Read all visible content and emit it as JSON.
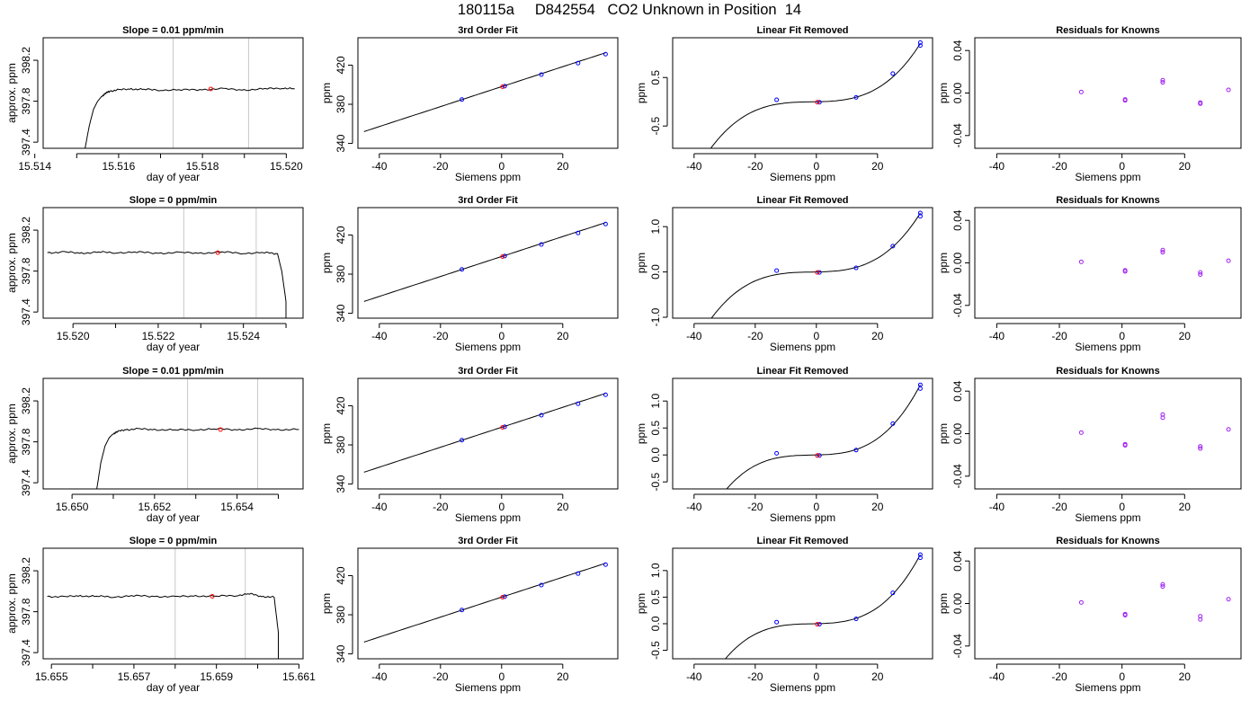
{
  "page": {
    "title": "180115a     D842554   CO2 Unknown in Position  14"
  },
  "styles": {
    "trace_color": "#000000",
    "vline_color": "#c8c8c8",
    "unknown_point_color": "#ff0000",
    "known_point_color": "#0000ff",
    "residual_point_color": "#a020f0",
    "frame_color": "#000000"
  },
  "chart_data": [
    {
      "row": 1,
      "type": "line",
      "title": "Slope =  0.01  ppm/min",
      "xlabel": "day of year",
      "ylabel": "approx. ppm",
      "xlim": [
        15.5142,
        15.5204
      ],
      "ylim": [
        397.34,
        398.42
      ],
      "xticks": [
        15.514,
        15.516,
        15.518,
        15.52
      ],
      "xtick_labels": [
        "15.514",
        "15.516",
        "15.518",
        "15.520"
      ],
      "xticks_minor": [
        15.515,
        15.517,
        15.519
      ],
      "yticks": [
        397.4,
        397.8,
        398.2
      ],
      "ytick_labels": [
        "397.4",
        "397.8",
        "398.2"
      ],
      "vlines": [
        15.5173,
        15.5191
      ],
      "trace": {
        "x": [
          15.5152,
          15.5153,
          15.5154,
          15.5155,
          15.5156,
          15.5157,
          15.5158,
          15.516,
          15.5163,
          15.5166,
          15.517,
          15.5175,
          15.518,
          15.5185,
          15.519,
          15.5195,
          15.5199,
          15.5202
        ],
        "y": [
          397.34,
          397.56,
          397.72,
          397.8,
          397.85,
          397.88,
          397.9,
          397.91,
          397.92,
          397.915,
          397.91,
          397.91,
          397.915,
          397.92,
          397.91,
          397.92,
          397.93,
          397.92
        ]
      },
      "marker": {
        "x": 15.5182,
        "y": 397.92
      }
    },
    {
      "row": 1,
      "type": "scatter",
      "title": "3rd Order Fit",
      "xlabel": "Siemens ppm",
      "ylabel": "ppm",
      "xlim": [
        -47,
        38
      ],
      "ylim": [
        335,
        448
      ],
      "xticks": [
        -40,
        -20,
        0,
        20
      ],
      "xtick_labels": [
        "-40",
        "-20",
        "0",
        "20"
      ],
      "yticks": [
        340,
        380,
        420
      ],
      "ytick_labels": [
        "340",
        "380",
        "420"
      ],
      "curve": {
        "kind": "fit",
        "x_from": -45,
        "x_to": 34
      },
      "known_points": {
        "x": [
          -13,
          1,
          13,
          25,
          34
        ],
        "y": [
          384.8,
          398.5,
          410.3,
          422.1,
          431.2
        ]
      },
      "unknown_points": {
        "x": [
          0.3
        ],
        "y": [
          397.9
        ]
      }
    },
    {
      "row": 1,
      "type": "scatter",
      "title": "Linear Fit Removed",
      "xlabel": "Siemens ppm",
      "ylabel": "ppm",
      "xlim": [
        -47,
        38
      ],
      "ylim": [
        -0.96,
        1.32
      ],
      "xticks": [
        -40,
        -20,
        0,
        20
      ],
      "xtick_labels": [
        "-40",
        "-20",
        "0",
        "20"
      ],
      "yticks": [
        -0.5,
        0.5
      ],
      "ytick_labels": [
        "-0.5",
        "0.5"
      ],
      "curve": {
        "kind": "cubic",
        "x_from": -45,
        "x_to": 34,
        "y_at_34": 1.2
      },
      "known_points": {
        "x": [
          -13,
          1,
          13,
          25,
          34,
          34
        ],
        "y": [
          0.04,
          -0.01,
          0.09,
          0.58,
          1.16,
          1.22
        ]
      },
      "unknown_points": {
        "x": [
          0.3
        ],
        "y": [
          -0.01
        ]
      }
    },
    {
      "row": 1,
      "type": "scatter",
      "title": "Residuals for Knowns",
      "xlabel": "Siemens ppm",
      "ylabel": "ppm",
      "xlim": [
        -47,
        38
      ],
      "ylim": [
        -0.052,
        0.052
      ],
      "xticks": [
        -40,
        -20,
        0,
        20
      ],
      "xtick_labels": [
        "-40",
        "-20",
        "0",
        "20"
      ],
      "yticks": [
        -0.04,
        0.0,
        0.04
      ],
      "ytick_labels": [
        "-0.04",
        "0.00",
        "0.04"
      ],
      "residual_points": {
        "x": [
          -13,
          1,
          1,
          13,
          13,
          25,
          25,
          34
        ],
        "y": [
          0.001,
          -0.006,
          -0.007,
          0.01,
          0.012,
          -0.009,
          -0.01,
          0.003
        ]
      }
    },
    {
      "row": 2,
      "type": "line",
      "title": "Slope =  0  ppm/min",
      "xlabel": "day of year",
      "ylabel": "approx. ppm",
      "xlim": [
        15.5193,
        15.5254
      ],
      "ylim": [
        397.34,
        398.42
      ],
      "xticks": [
        15.52,
        15.522,
        15.524
      ],
      "xtick_labels": [
        "15.520",
        "15.522",
        "15.524"
      ],
      "xticks_minor": [
        15.521,
        15.523,
        15.525
      ],
      "yticks": [
        397.4,
        397.8,
        398.2
      ],
      "ytick_labels": [
        "397.4",
        "397.8",
        "398.2"
      ],
      "vlines": [
        15.5226,
        15.5243
      ],
      "trace": {
        "x": [
          15.5194,
          15.5198,
          15.5202,
          15.5206,
          15.521,
          15.5215,
          15.522,
          15.5225,
          15.523,
          15.5235,
          15.524,
          15.5245,
          15.5248,
          15.5249,
          15.525,
          15.525
        ],
        "y": [
          397.98,
          397.985,
          397.975,
          397.985,
          397.98,
          397.985,
          397.975,
          397.98,
          397.975,
          397.985,
          397.975,
          397.98,
          397.97,
          397.8,
          397.5,
          397.34
        ]
      },
      "marker": {
        "x": 15.5234,
        "y": 397.98
      }
    },
    {
      "row": 2,
      "type": "scatter",
      "title": "3rd Order Fit",
      "xlabel": "Siemens ppm",
      "ylabel": "ppm",
      "xlim": [
        -47,
        38
      ],
      "ylim": [
        335,
        448
      ],
      "xticks": [
        -40,
        -20,
        0,
        20
      ],
      "xtick_labels": [
        "-40",
        "-20",
        "0",
        "20"
      ],
      "yticks": [
        340,
        380,
        420
      ],
      "ytick_labels": [
        "340",
        "380",
        "420"
      ],
      "curve": {
        "kind": "fit",
        "x_from": -45,
        "x_to": 34
      },
      "known_points": {
        "x": [
          -13,
          1,
          13,
          25,
          34
        ],
        "y": [
          384.8,
          398.5,
          410.3,
          422.1,
          431.2
        ]
      },
      "unknown_points": {
        "x": [
          0.3
        ],
        "y": [
          397.9
        ]
      }
    },
    {
      "row": 2,
      "type": "scatter",
      "title": "Linear Fit Removed",
      "xlabel": "Siemens ppm",
      "ylabel": "ppm",
      "xlim": [
        -47,
        38
      ],
      "ylim": [
        -1.02,
        1.42
      ],
      "xticks": [
        -40,
        -20,
        0,
        20
      ],
      "xtick_labels": [
        "-40",
        "-20",
        "0",
        "20"
      ],
      "yticks": [
        -1.0,
        0.0,
        1.0
      ],
      "ytick_labels": [
        "-1.0",
        "0.0",
        "1.0"
      ],
      "curve": {
        "kind": "cubic",
        "x_from": -45,
        "x_to": 34,
        "y_at_34": 1.3
      },
      "known_points": {
        "x": [
          -13,
          1,
          13,
          25,
          34,
          34
        ],
        "y": [
          0.03,
          -0.01,
          0.09,
          0.57,
          1.23,
          1.3
        ]
      },
      "unknown_points": {
        "x": [
          0.3
        ],
        "y": [
          -0.01
        ]
      }
    },
    {
      "row": 2,
      "type": "scatter",
      "title": "Residuals for Knowns",
      "xlabel": "Siemens ppm",
      "ylabel": "ppm",
      "xlim": [
        -47,
        38
      ],
      "ylim": [
        -0.052,
        0.052
      ],
      "xticks": [
        -40,
        -20,
        0,
        20
      ],
      "xtick_labels": [
        "-40",
        "-20",
        "0",
        "20"
      ],
      "yticks": [
        -0.04,
        0.0,
        0.04
      ],
      "ytick_labels": [
        "-0.04",
        "0.00",
        "0.04"
      ],
      "residual_points": {
        "x": [
          -13,
          1,
          1,
          13,
          13,
          25,
          25,
          34
        ],
        "y": [
          0.001,
          -0.007,
          -0.008,
          0.01,
          0.012,
          -0.009,
          -0.011,
          0.002
        ]
      }
    },
    {
      "row": 3,
      "type": "line",
      "title": "Slope =  0.01  ppm/min",
      "xlabel": "day of year",
      "ylabel": "approx. ppm",
      "xlim": [
        15.6493,
        15.6556
      ],
      "ylim": [
        397.34,
        398.42
      ],
      "xticks": [
        15.65,
        15.652,
        15.654
      ],
      "xtick_labels": [
        "15.650",
        "15.652",
        "15.654"
      ],
      "xticks_minor": [
        15.651,
        15.653,
        15.655
      ],
      "yticks": [
        397.4,
        397.8,
        398.2
      ],
      "ytick_labels": [
        "397.4",
        "397.8",
        "398.2"
      ],
      "vlines": [
        15.6528,
        15.6545
      ],
      "trace": {
        "x": [
          15.6506,
          15.6507,
          15.6508,
          15.6509,
          15.651,
          15.6511,
          15.6513,
          15.6516,
          15.652,
          15.6525,
          15.653,
          15.6535,
          15.654,
          15.6545,
          15.655,
          15.6555
        ],
        "y": [
          397.34,
          397.6,
          397.76,
          397.84,
          397.88,
          397.9,
          397.92,
          397.925,
          397.92,
          397.915,
          397.92,
          397.925,
          397.92,
          397.925,
          397.92,
          397.92
        ]
      },
      "marker": {
        "x": 15.6536,
        "y": 397.92
      }
    },
    {
      "row": 3,
      "type": "scatter",
      "title": "3rd Order Fit",
      "xlabel": "Siemens ppm",
      "ylabel": "ppm",
      "xlim": [
        -47,
        38
      ],
      "ylim": [
        335,
        448
      ],
      "xticks": [
        -40,
        -20,
        0,
        20
      ],
      "xtick_labels": [
        "-40",
        "-20",
        "0",
        "20"
      ],
      "yticks": [
        340,
        380,
        420
      ],
      "ytick_labels": [
        "340",
        "380",
        "420"
      ],
      "curve": {
        "kind": "fit",
        "x_from": -45,
        "x_to": 34
      },
      "known_points": {
        "x": [
          -13,
          1,
          13,
          25,
          34
        ],
        "y": [
          384.8,
          398.5,
          410.3,
          422.1,
          431.2
        ]
      },
      "unknown_points": {
        "x": [
          0.3
        ],
        "y": [
          397.9
        ]
      }
    },
    {
      "row": 3,
      "type": "scatter",
      "title": "Linear Fit Removed",
      "xlabel": "Siemens ppm",
      "ylabel": "ppm",
      "xlim": [
        -47,
        38
      ],
      "ylim": [
        -0.63,
        1.42
      ],
      "xticks": [
        -40,
        -20,
        0,
        20
      ],
      "xtick_labels": [
        "-40",
        "-20",
        "0",
        "20"
      ],
      "yticks": [
        -0.5,
        0.0,
        0.5,
        1.0
      ],
      "ytick_labels": [
        "-0.5",
        "0.0",
        "0.5",
        "1.0"
      ],
      "curve": {
        "kind": "cubic",
        "x_from": -45,
        "x_to": 34,
        "y_at_34": 1.3
      },
      "known_points": {
        "x": [
          -13,
          1,
          13,
          25,
          34,
          34
        ],
        "y": [
          0.03,
          -0.01,
          0.09,
          0.58,
          1.23,
          1.3
        ]
      },
      "unknown_points": {
        "x": [
          0.3
        ],
        "y": [
          -0.01
        ]
      }
    },
    {
      "row": 3,
      "type": "scatter",
      "title": "Residuals for Knowns",
      "xlabel": "Siemens ppm",
      "ylabel": "ppm",
      "xlim": [
        -47,
        38
      ],
      "ylim": [
        -0.052,
        0.052
      ],
      "xticks": [
        -40,
        -20,
        0,
        20
      ],
      "xtick_labels": [
        "-40",
        "-20",
        "0",
        "20"
      ],
      "yticks": [
        -0.04,
        0.0,
        0.04
      ],
      "ytick_labels": [
        "-0.04",
        "0.00",
        "0.04"
      ],
      "residual_points": {
        "x": [
          -13,
          1,
          1,
          13,
          13,
          25,
          25,
          34
        ],
        "y": [
          0.001,
          -0.01,
          -0.011,
          0.015,
          0.018,
          -0.012,
          -0.014,
          0.004
        ]
      }
    },
    {
      "row": 4,
      "type": "line",
      "title": "Slope =  0  ppm/min",
      "xlabel": "day of year",
      "ylabel": "approx. ppm",
      "xlim": [
        15.6548,
        15.6611
      ],
      "ylim": [
        397.34,
        398.42
      ],
      "xticks": [
        15.655,
        15.657,
        15.659,
        15.661
      ],
      "xtick_labels": [
        "15.655",
        "15.657",
        "15.659",
        "15.661"
      ],
      "xticks_minor": [
        15.656,
        15.658,
        15.66
      ],
      "yticks": [
        397.4,
        397.8,
        398.2
      ],
      "ytick_labels": [
        "397.4",
        "397.8",
        "398.2"
      ],
      "vlines": [
        15.658,
        15.6597
      ],
      "trace": {
        "x": [
          15.6549,
          15.6553,
          15.6557,
          15.6561,
          15.6565,
          15.657,
          15.6575,
          15.658,
          15.6585,
          15.659,
          15.6595,
          15.6598,
          15.6601,
          15.6604,
          15.6605,
          15.6605
        ],
        "y": [
          397.95,
          397.945,
          397.955,
          397.95,
          397.945,
          397.955,
          397.95,
          397.945,
          397.955,
          397.95,
          397.96,
          397.975,
          397.95,
          397.94,
          397.6,
          397.34
        ]
      },
      "marker": {
        "x": 15.6589,
        "y": 397.95
      }
    },
    {
      "row": 4,
      "type": "scatter",
      "title": "3rd Order Fit",
      "xlabel": "Siemens ppm",
      "ylabel": "ppm",
      "xlim": [
        -47,
        38
      ],
      "ylim": [
        335,
        448
      ],
      "xticks": [
        -40,
        -20,
        0,
        20
      ],
      "xtick_labels": [
        "-40",
        "-20",
        "0",
        "20"
      ],
      "yticks": [
        340,
        380,
        420
      ],
      "ytick_labels": [
        "340",
        "380",
        "420"
      ],
      "curve": {
        "kind": "fit",
        "x_from": -45,
        "x_to": 34
      },
      "known_points": {
        "x": [
          -13,
          1,
          13,
          25,
          34
        ],
        "y": [
          384.8,
          398.5,
          410.3,
          422.1,
          431.2
        ]
      },
      "unknown_points": {
        "x": [
          0.3
        ],
        "y": [
          397.9
        ]
      }
    },
    {
      "row": 4,
      "type": "scatter",
      "title": "Linear Fit Removed",
      "xlabel": "Siemens ppm",
      "ylabel": "ppm",
      "xlim": [
        -47,
        38
      ],
      "ylim": [
        -0.66,
        1.42
      ],
      "xticks": [
        -40,
        -20,
        0,
        20
      ],
      "xtick_labels": [
        "-40",
        "-20",
        "0",
        "20"
      ],
      "yticks": [
        -0.5,
        0.0,
        0.5,
        1.0
      ],
      "ytick_labels": [
        "-0.5",
        "0.0",
        "0.5",
        "1.0"
      ],
      "curve": {
        "kind": "cubic",
        "x_from": -45,
        "x_to": 34,
        "y_at_34": 1.3
      },
      "known_points": {
        "x": [
          -13,
          1,
          13,
          25,
          34,
          34
        ],
        "y": [
          0.03,
          -0.01,
          0.09,
          0.58,
          1.24,
          1.3
        ]
      },
      "unknown_points": {
        "x": [
          0.3
        ],
        "y": [
          -0.01
        ]
      }
    },
    {
      "row": 4,
      "type": "scatter",
      "title": "Residuals for Knowns",
      "xlabel": "Siemens ppm",
      "ylabel": "ppm",
      "xlim": [
        -47,
        38
      ],
      "ylim": [
        -0.052,
        0.052
      ],
      "xticks": [
        -40,
        -20,
        0,
        20
      ],
      "xtick_labels": [
        "-40",
        "-20",
        "0",
        "20"
      ],
      "yticks": [
        -0.04,
        0.0,
        0.04
      ],
      "ytick_labels": [
        "-0.04",
        "0.00",
        "0.04"
      ],
      "residual_points": {
        "x": [
          -13,
          1,
          1,
          13,
          13,
          25,
          25,
          34
        ],
        "y": [
          0.001,
          -0.01,
          -0.011,
          0.016,
          0.018,
          -0.012,
          -0.015,
          0.004
        ]
      }
    }
  ]
}
